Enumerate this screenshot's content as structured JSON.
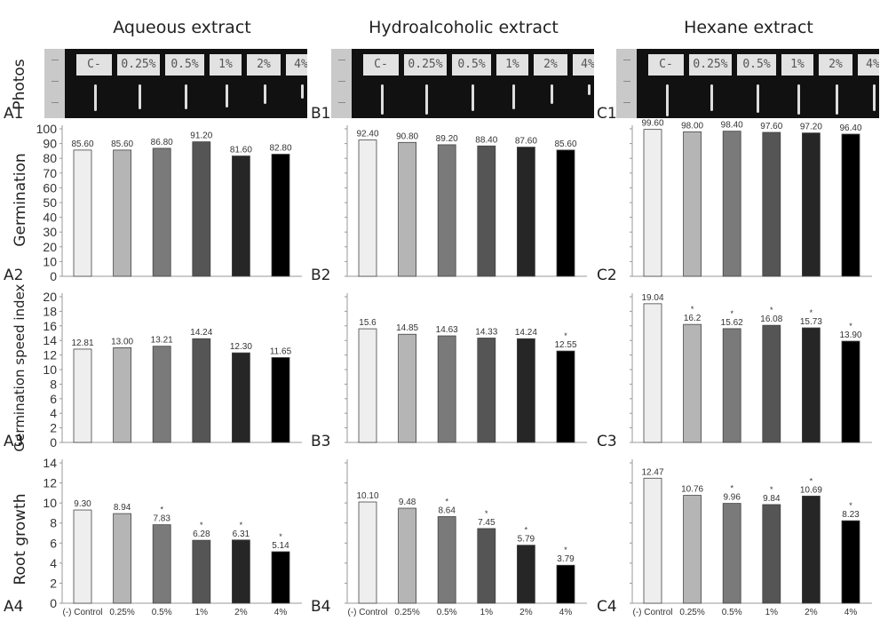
{
  "figure": {
    "columns": [
      "Aqueous extract",
      "Hydroalcoholic extract",
      "Hexane extract"
    ],
    "rows": [
      "Photos",
      "Germination",
      "Germination speed index",
      "Root growth"
    ],
    "panel_ids": {
      "A": [
        "A1",
        "A2",
        "A3",
        "A4"
      ],
      "B": [
        "B1",
        "B2",
        "B3",
        "B4"
      ],
      "C": [
        "C1",
        "C2",
        "C3",
        "C4"
      ]
    },
    "photo_tags": [
      "C-",
      "0.25%",
      "0.5%",
      "1%",
      "2%",
      "4%"
    ],
    "bar_colors": [
      "#eeeeee",
      "#b5b5b5",
      "#7a7a7a",
      "#555555",
      "#262626",
      "#000000"
    ]
  },
  "chart_data": [
    {
      "id": "A2",
      "type": "bar",
      "title": "Aqueous extract",
      "ylabel": "Germination",
      "categories": [
        "(-) Control",
        "0.25%",
        "0.5%",
        "1%",
        "2%",
        "4%"
      ],
      "values": [
        85.6,
        85.6,
        86.8,
        91.2,
        81.6,
        82.8
      ],
      "labels": [
        "85.60",
        "85.60",
        "86.80",
        "91.20",
        "81.60",
        "82.80"
      ],
      "significant": [
        false,
        false,
        false,
        false,
        false,
        false
      ],
      "ylim": [
        0,
        100
      ],
      "yticks": [
        0,
        10,
        20,
        30,
        40,
        50,
        60,
        70,
        80,
        90,
        100
      ]
    },
    {
      "id": "B2",
      "type": "bar",
      "title": "Hydroalcoholic extract",
      "ylabel": "Germination",
      "categories": [
        "(-) Control",
        "0.25%",
        "0.5%",
        "1%",
        "2%",
        "4%"
      ],
      "values": [
        92.4,
        90.8,
        89.2,
        88.4,
        87.6,
        85.6
      ],
      "labels": [
        "92.40",
        "90.80",
        "89.20",
        "88.40",
        "87.60",
        "85.60"
      ],
      "significant": [
        false,
        false,
        false,
        false,
        false,
        false
      ],
      "ylim": [
        0,
        100
      ]
    },
    {
      "id": "C2",
      "type": "bar",
      "title": "Hexane extract",
      "ylabel": "Germination",
      "categories": [
        "(-) Control",
        "0.25%",
        "0.5%",
        "1%",
        "2%",
        "4%"
      ],
      "values": [
        99.6,
        98.0,
        98.4,
        97.6,
        97.2,
        96.4
      ],
      "labels": [
        "99.60",
        "98.00",
        "98.40",
        "97.60",
        "97.20",
        "96.40"
      ],
      "significant": [
        false,
        false,
        false,
        false,
        false,
        false
      ],
      "ylim": [
        0,
        100
      ]
    },
    {
      "id": "A3",
      "type": "bar",
      "title": "Aqueous extract",
      "ylabel": "Germination speed index",
      "categories": [
        "(-) Control",
        "0.25%",
        "0.5%",
        "1%",
        "2%",
        "4%"
      ],
      "values": [
        12.81,
        13.0,
        13.21,
        14.24,
        12.3,
        11.65
      ],
      "labels": [
        "12.81",
        "13.00",
        "13.21",
        "14.24",
        "12.30",
        "11.65"
      ],
      "significant": [
        false,
        false,
        false,
        false,
        false,
        false
      ],
      "ylim": [
        0,
        20
      ],
      "yticks": [
        0,
        2,
        4,
        6,
        8,
        10,
        12,
        14,
        16,
        18,
        20
      ]
    },
    {
      "id": "B3",
      "type": "bar",
      "title": "Hydroalcoholic extract",
      "ylabel": "Germination speed index",
      "categories": [
        "(-) Control",
        "0.25%",
        "0.5%",
        "1%",
        "2%",
        "4%"
      ],
      "values": [
        15.6,
        14.85,
        14.63,
        14.33,
        14.24,
        12.55
      ],
      "labels": [
        "15.6",
        "14.85",
        "14.63",
        "14.33",
        "14.24",
        "12.55"
      ],
      "significant": [
        false,
        false,
        false,
        false,
        false,
        true
      ],
      "ylim": [
        0,
        20
      ]
    },
    {
      "id": "C3",
      "type": "bar",
      "title": "Hexane extract",
      "ylabel": "Germination speed index",
      "categories": [
        "(-) Control",
        "0.25%",
        "0.5%",
        "1%",
        "2%",
        "4%"
      ],
      "values": [
        19.04,
        16.2,
        15.62,
        16.08,
        15.73,
        13.9
      ],
      "labels": [
        "19.04",
        "16.2",
        "15.62",
        "16.08",
        "15.73",
        "13.90"
      ],
      "significant": [
        false,
        true,
        true,
        true,
        true,
        true
      ],
      "ylim": [
        0,
        20
      ]
    },
    {
      "id": "A4",
      "type": "bar",
      "title": "Aqueous extract",
      "ylabel": "Root growth",
      "categories": [
        "(-) Control",
        "0.25%",
        "0.5%",
        "1%",
        "2%",
        "4%"
      ],
      "values": [
        9.3,
        8.94,
        7.83,
        6.28,
        6.31,
        5.14
      ],
      "labels": [
        "9.30",
        "8.94",
        "7.83",
        "6.28",
        "6.31",
        "5.14"
      ],
      "significant": [
        false,
        false,
        true,
        true,
        true,
        true
      ],
      "ylim": [
        0,
        14
      ],
      "yticks": [
        0,
        2,
        4,
        6,
        8,
        10,
        12,
        14
      ]
    },
    {
      "id": "B4",
      "type": "bar",
      "title": "Hydroalcoholic extract",
      "ylabel": "Root growth",
      "categories": [
        "(-) Control",
        "0.25%",
        "0.5%",
        "1%",
        "2%",
        "4%"
      ],
      "values": [
        10.1,
        9.48,
        8.64,
        7.45,
        5.79,
        3.79
      ],
      "labels": [
        "10.10",
        "9.48",
        "8.64",
        "7.45",
        "5.79",
        "3.79"
      ],
      "significant": [
        false,
        false,
        true,
        true,
        true,
        true
      ],
      "ylim": [
        0,
        14
      ]
    },
    {
      "id": "C4",
      "type": "bar",
      "title": "Hexane extract",
      "ylabel": "Root growth",
      "categories": [
        "(-) Control",
        "0.25%",
        "0.5%",
        "1%",
        "2%",
        "4%"
      ],
      "values": [
        12.47,
        10.76,
        9.96,
        9.84,
        10.69,
        8.23
      ],
      "labels": [
        "12.47",
        "10.76",
        "9.96",
        "9.84",
        "10.69",
        "8.23"
      ],
      "significant": [
        false,
        false,
        true,
        true,
        true,
        true
      ],
      "ylim": [
        0,
        14
      ]
    }
  ]
}
